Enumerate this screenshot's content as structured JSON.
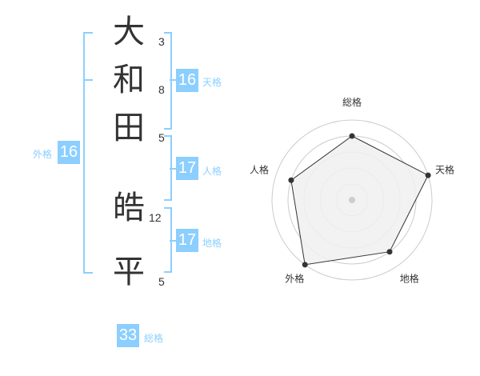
{
  "name": {
    "chars": [
      {
        "char": "大",
        "strokes": "3"
      },
      {
        "char": "和",
        "strokes": "8"
      },
      {
        "char": "田",
        "strokes": "5"
      },
      {
        "char": "皓",
        "strokes": "12"
      },
      {
        "char": "平",
        "strokes": "5"
      }
    ]
  },
  "results": {
    "tenkaku": {
      "label": "天格",
      "value": "16"
    },
    "jinkaku": {
      "label": "人格",
      "value": "17"
    },
    "chikaku": {
      "label": "地格",
      "value": "17"
    },
    "gaikaku": {
      "label": "外格",
      "value": "16"
    },
    "soukaku": {
      "label": "総格",
      "value": "33"
    }
  },
  "colors": {
    "accent": "#8ccfff",
    "text": "#333333",
    "radar_fill": "#f0f0f0",
    "grid": "#cccccc"
  },
  "chart_data": {
    "type": "radar",
    "axes": [
      "総格",
      "天格",
      "地格",
      "外格",
      "人格"
    ],
    "values": [
      4,
      5,
      4,
      5,
      4
    ],
    "range": [
      0,
      5
    ],
    "rings": 5
  }
}
